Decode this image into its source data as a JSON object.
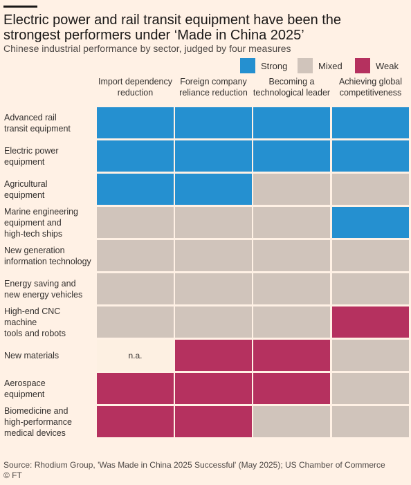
{
  "title": "Electric power and rail transit equipment have been the strongest performers under ‘Made in China 2025’",
  "subtitle": "Chinese industrial performance by sector, judged by four measures",
  "colors": {
    "strong": "#2590d0",
    "mixed": "#d0c4bb",
    "weak": "#b5315f",
    "na": "#fdf0e2",
    "background": "#fff1e5"
  },
  "legend": [
    {
      "key": "strong",
      "label": "Strong"
    },
    {
      "key": "mixed",
      "label": "Mixed"
    },
    {
      "key": "weak",
      "label": "Weak"
    }
  ],
  "source": "Source: Rhodium Group, 'Was Made in China 2025 Successful' (May 2025); US Chamber of Commerce",
  "copyright": "© FT",
  "chart_data": {
    "type": "heatmap",
    "columns": [
      "Import dependency reduction",
      "Foreign company reliance reduction",
      "Becoming a technological leader",
      "Achieving global competitiveness"
    ],
    "rows": [
      {
        "sector": "Advanced rail transit equipment",
        "values": [
          "Strong",
          "Strong",
          "Strong",
          "Strong"
        ]
      },
      {
        "sector": "Electric power equipment",
        "values": [
          "Strong",
          "Strong",
          "Strong",
          "Strong"
        ]
      },
      {
        "sector": "Agricultural equipment",
        "values": [
          "Strong",
          "Strong",
          "Mixed",
          "Mixed"
        ]
      },
      {
        "sector": "Marine engineering equipment and high-tech ships",
        "values": [
          "Mixed",
          "Mixed",
          "Mixed",
          "Strong"
        ]
      },
      {
        "sector": "New generation information technology",
        "values": [
          "Mixed",
          "Mixed",
          "Mixed",
          "Mixed"
        ]
      },
      {
        "sector": "Energy saving and new energy vehicles",
        "values": [
          "Mixed",
          "Mixed",
          "Mixed",
          "Mixed"
        ]
      },
      {
        "sector": "High-end CNC machine tools and robots",
        "values": [
          "Mixed",
          "Mixed",
          "Mixed",
          "Weak"
        ]
      },
      {
        "sector": "New materials",
        "values": [
          "n.a.",
          "Weak",
          "Weak",
          "Mixed"
        ]
      },
      {
        "sector": "Aerospace equipment",
        "values": [
          "Weak",
          "Weak",
          "Weak",
          "Mixed"
        ]
      },
      {
        "sector": "Biomedicine and high-performance medical devices",
        "values": [
          "Weak",
          "Weak",
          "Mixed",
          "Mixed"
        ]
      }
    ]
  }
}
